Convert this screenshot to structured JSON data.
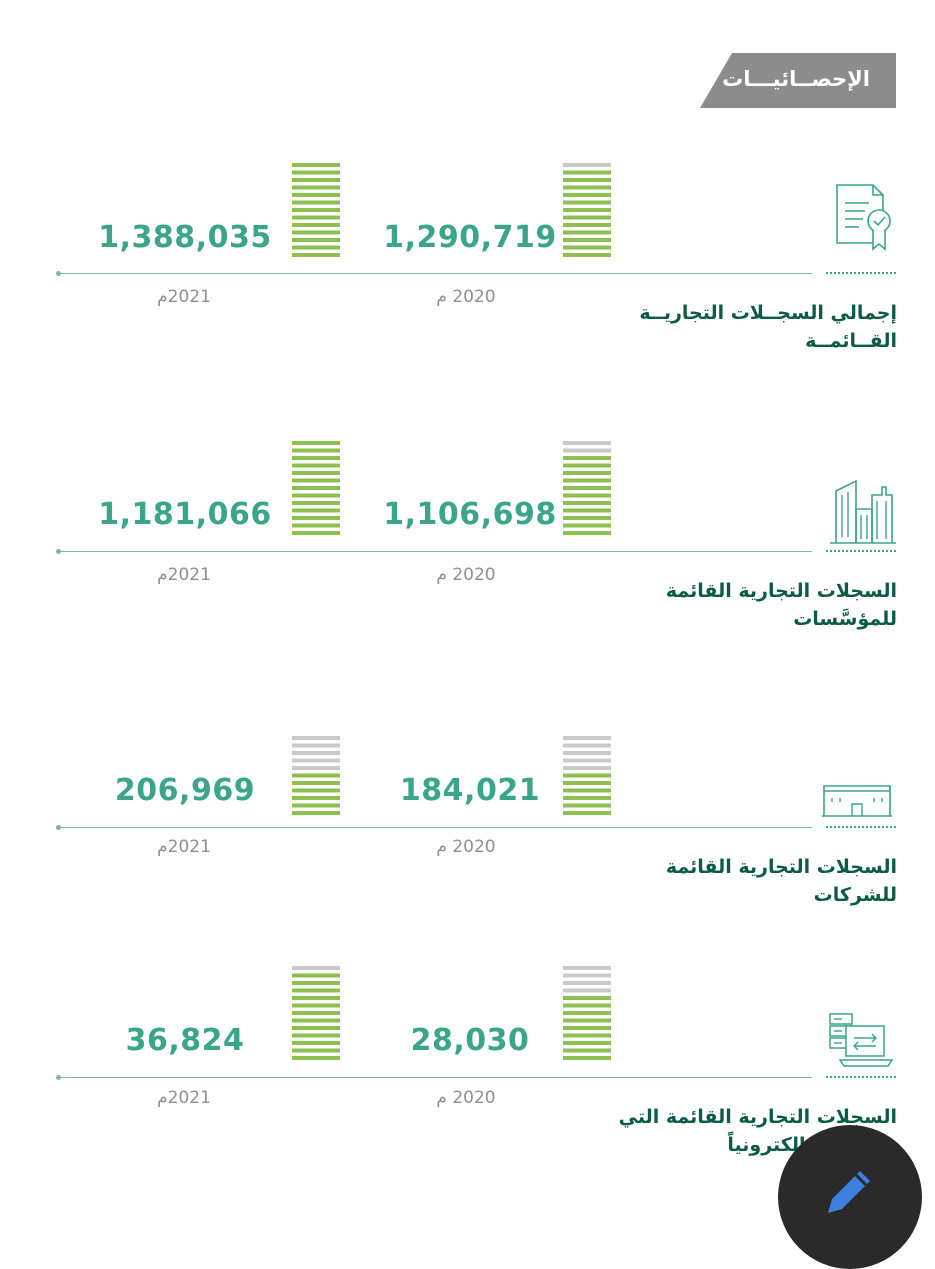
{
  "header": {
    "title": "الإحصــائيـــات"
  },
  "colors": {
    "accent": "#3aa58a",
    "bar_fill": "#8dc050",
    "bar_empty": "#c9c9c9",
    "label": "#0c5b47"
  },
  "sections": [
    {
      "label": "إجمالي السجــلات التجاريــة القــائمــة",
      "icon": "certificate-icon",
      "year_2020": "2020 م",
      "value_2020": "1,290,719",
      "fill_2020": 0.93,
      "year_2021": "2021م",
      "value_2021": "1,388,035",
      "fill_2021": 1.0
    },
    {
      "label": "السجلات التجارية القائمة للمؤسَّسات",
      "icon": "buildings-icon",
      "year_2020": "2020 م",
      "value_2020": "1,106,698",
      "fill_2020": 0.86,
      "year_2021": "2021م",
      "value_2021": "1,181,066",
      "fill_2021": 1.0
    },
    {
      "label": "السجلات التجارية القائمة للشركات",
      "icon": "company-building-icon",
      "year_2020": "2020 م",
      "value_2020": "184,021",
      "fill_2020": 0.5,
      "year_2021": "2021م",
      "value_2021": "206,969",
      "fill_2021": 0.55
    },
    {
      "label": "السجلات التجارية القائمة التي تم ربطها إلكترونياً",
      "icon": "server-laptop-icon",
      "year_2020": "2020 م",
      "value_2020": "28,030",
      "fill_2020": 0.7,
      "year_2021": "2021م",
      "value_2021": "36,824",
      "fill_2021": 0.92
    }
  ]
}
